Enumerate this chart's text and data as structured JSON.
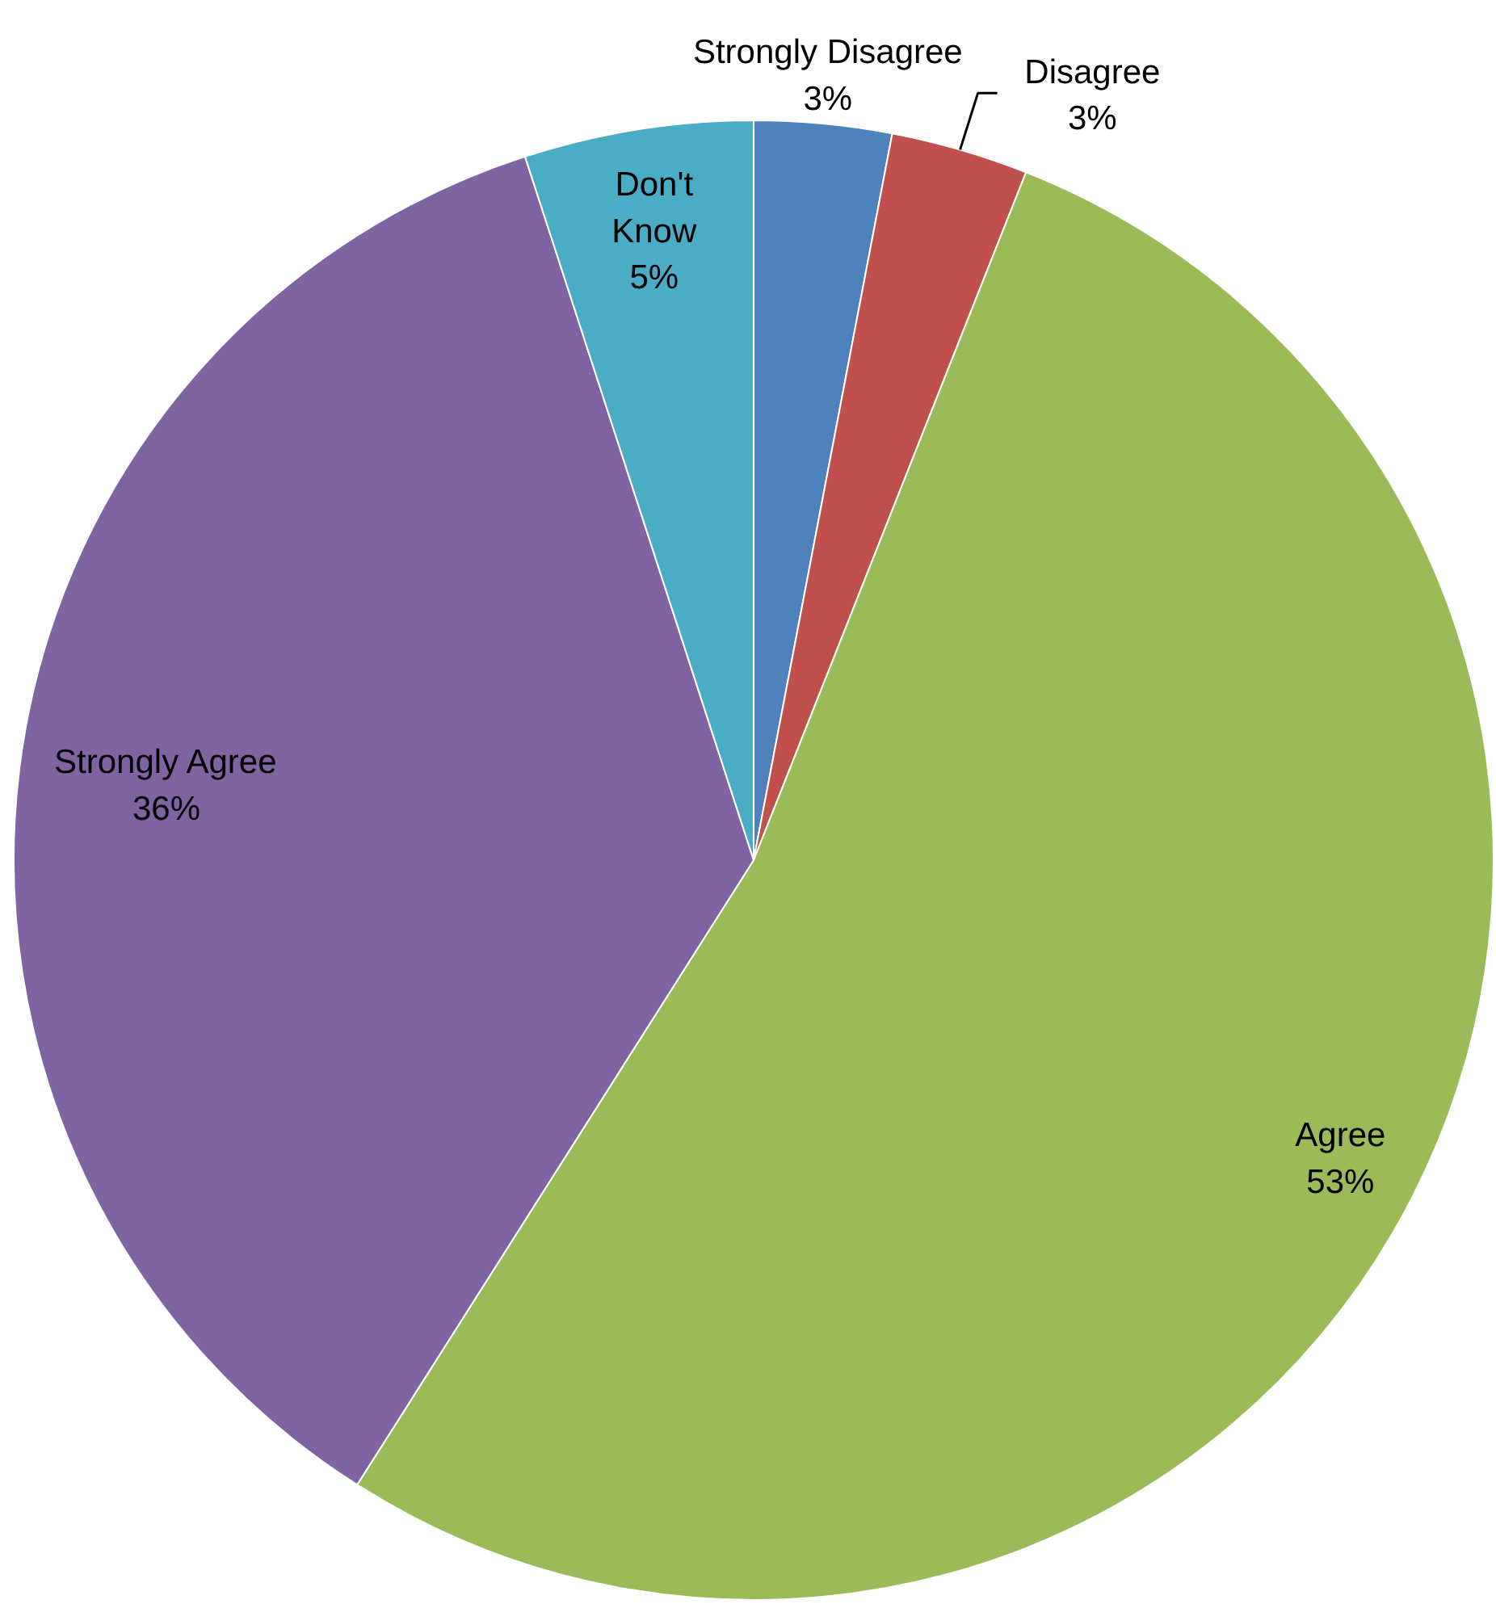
{
  "chart_data": {
    "type": "pie",
    "categories": [
      "Strongly Disagree",
      "Disagree",
      "Agree",
      "Strongly Agree",
      "Don't Know"
    ],
    "values": [
      3,
      3,
      53,
      36,
      5
    ],
    "colors": [
      "#4f81bd",
      "#c0504d",
      "#9bbb59",
      "#8064a2",
      "#4bacc6"
    ],
    "value_labels": [
      "3%",
      "3%",
      "53%",
      "36%",
      "5%"
    ]
  }
}
